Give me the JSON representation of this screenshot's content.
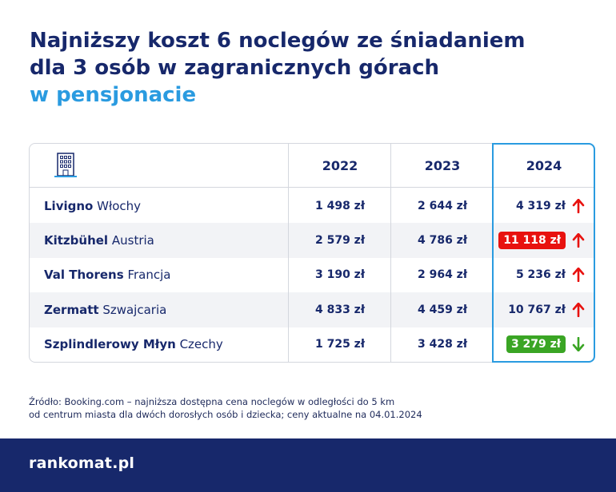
{
  "title": {
    "line1": "Najniższy koszt 6 noclegów ze śniadaniem",
    "line2": "dla 3 osób w zagranicznych górach",
    "line3": "w pensjonacie"
  },
  "table": {
    "header_icon": "hotel-building-icon",
    "years": [
      "2022",
      "2023",
      "2024"
    ],
    "rows": [
      {
        "place": "Livigno",
        "country": "Włochy",
        "v2022": "1 498 zł",
        "v2023": "2 644 zł",
        "v2024": "4 319 zł",
        "trend": "up",
        "highlight": "none"
      },
      {
        "place": "Kitzbühel",
        "country": "Austria",
        "v2022": "2 579 zł",
        "v2023": "4 786 zł",
        "v2024": "11 118 zł",
        "trend": "up",
        "highlight": "red"
      },
      {
        "place": "Val Thorens",
        "country": "Francja",
        "v2022": "3 190 zł",
        "v2023": "2 964 zł",
        "v2024": "5 236 zł",
        "trend": "up",
        "highlight": "none"
      },
      {
        "place": "Zermatt",
        "country": "Szwajcaria",
        "v2022": "4 833 zł",
        "v2023": "4 459 zł",
        "v2024": "10 767 zł",
        "trend": "up",
        "highlight": "none"
      },
      {
        "place": "Szplindlerowy Młyn",
        "country": "Czechy",
        "v2022": "1 725 zł",
        "v2023": "3 428 zł",
        "v2024": "3 279 zł",
        "trend": "down",
        "highlight": "green"
      }
    ]
  },
  "source": {
    "line1": "Źródło: Booking.com – najniższa dostępna cena noclegów w odległości do 5 km",
    "line2": "od centrum miasta dla dwóch dorosłych osób i dziecka; ceny aktualne na 04.01.2024"
  },
  "footer": {
    "logo": "rankomat.pl"
  },
  "colors": {
    "navy": "#17286b",
    "accent": "#2a9be0",
    "up": "#e8120f",
    "down": "#3aa524"
  }
}
